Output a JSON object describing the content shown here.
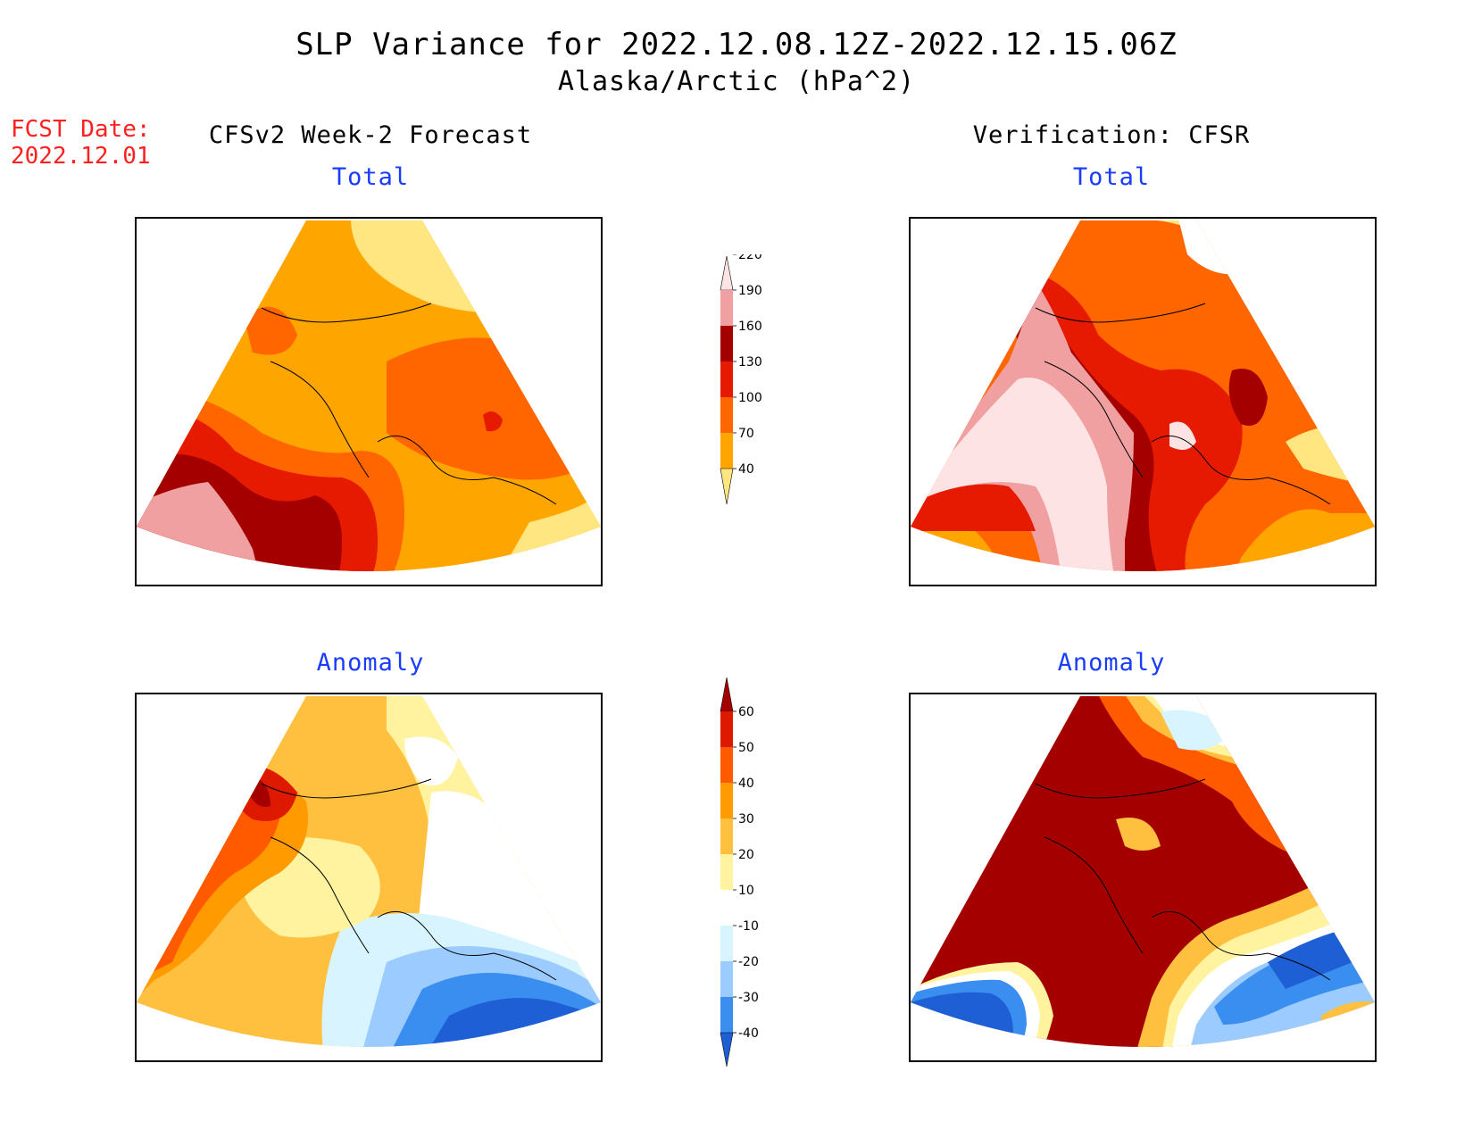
{
  "title": {
    "line1": "SLP Variance for 2022.12.08.12Z-2022.12.15.06Z",
    "line2": "Alaska/Arctic (hPa^2)"
  },
  "fcst": {
    "label": "FCST Date:",
    "date": "2022.12.01"
  },
  "columns": {
    "left": "CFSv2 Week-2 Forecast",
    "right": "Verification: CFSR"
  },
  "panels": {
    "total_label": "Total",
    "anomaly_label": "Anomaly"
  },
  "colorbars": {
    "total": {
      "levels": [
        "40",
        "70",
        "100",
        "130",
        "160",
        "190",
        "220"
      ],
      "colors": [
        "#ffe680",
        "#ffa500",
        "#ff6600",
        "#e61a00",
        "#a50000",
        "#f0a0a0",
        "#fde3e3"
      ]
    },
    "anomaly": {
      "levels": [
        "-40",
        "-30",
        "-20",
        "-10",
        "10",
        "20",
        "30",
        "40",
        "50",
        "60"
      ],
      "colors": [
        "#1f5fd6",
        "#3a8ef0",
        "#9bcbff",
        "#d8f5ff",
        "#ffffff",
        "#fff3a0",
        "#ffc040",
        "#ff9a00",
        "#ff5a00",
        "#dd1a00",
        "#a50000"
      ]
    }
  },
  "colors": {
    "title_blue": "#1a3cff",
    "fcst_red": "#ff2020"
  }
}
